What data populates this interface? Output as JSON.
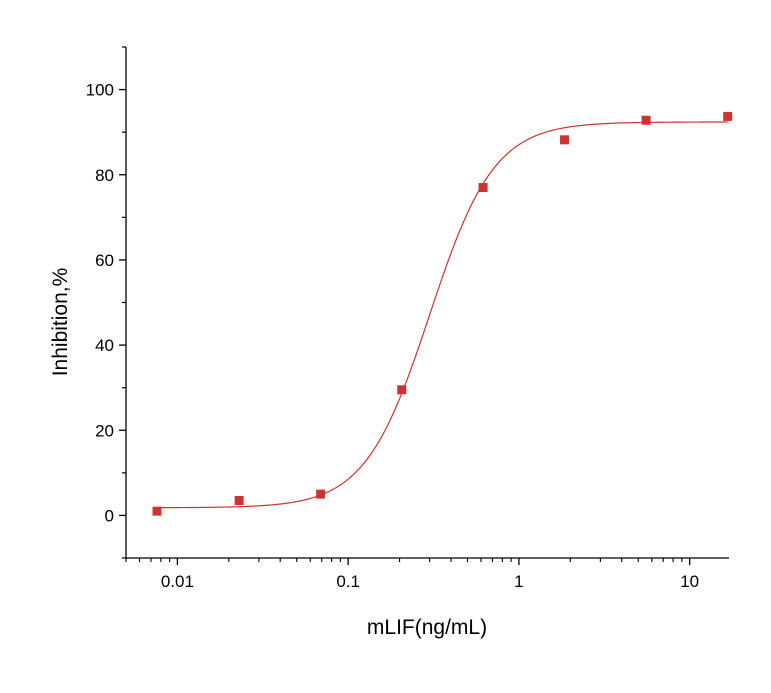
{
  "chart_data": {
    "type": "scatter",
    "title": "",
    "xlabel": "mLIF(ng/mL)",
    "ylabel": "Inhibition,%",
    "x_scale": "log",
    "xlim": [
      0.005,
      17
    ],
    "ylim": [
      -10,
      110
    ],
    "x_ticks": [
      0.01,
      0.1,
      1,
      10
    ],
    "x_tick_labels": [
      "0.01",
      "0.1",
      "1",
      "10"
    ],
    "y_ticks": [
      0,
      20,
      40,
      60,
      80,
      100
    ],
    "y_tick_labels": [
      "0",
      "20",
      "40",
      "60",
      "80",
      "100"
    ],
    "grid": false,
    "legend": "none",
    "series": [
      {
        "type": "scatter",
        "color": "#cc3333",
        "points": [
          {
            "x": 0.0076,
            "y": 1.0
          },
          {
            "x": 0.023,
            "y": 3.5
          },
          {
            "x": 0.069,
            "y": 5.0
          },
          {
            "x": 0.206,
            "y": 29.5
          },
          {
            "x": 0.617,
            "y": 77.0
          },
          {
            "x": 1.85,
            "y": 88.2
          },
          {
            "x": 5.56,
            "y": 92.8
          },
          {
            "x": 16.7,
            "y": 93.7
          }
        ]
      },
      {
        "type": "line",
        "color": "#cc3333",
        "fit": {
          "model": "4PL",
          "bottom": 1.8,
          "top": 92.4,
          "ec50": 0.3,
          "hill": 2.3
        }
      }
    ]
  }
}
